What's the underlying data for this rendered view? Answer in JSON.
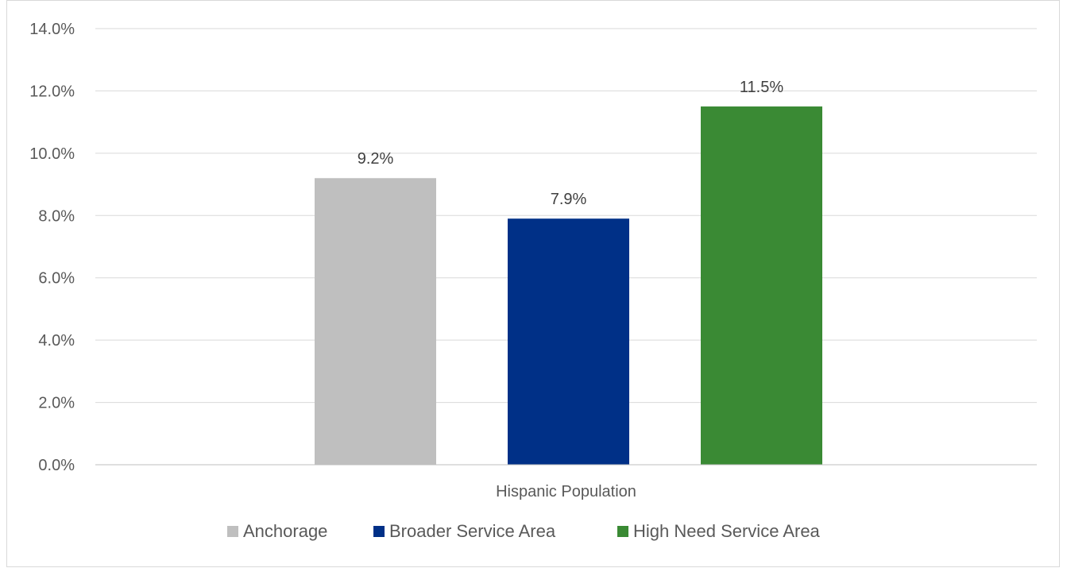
{
  "chart_data": {
    "type": "bar",
    "title": "",
    "xlabel": "",
    "ylabel": "",
    "categories": [
      "Hispanic Population"
    ],
    "series": [
      {
        "name": "Anchorage",
        "values": [
          9.2
        ],
        "color": "#bfbfbf",
        "label": "9.2%"
      },
      {
        "name": "Broader Service Area",
        "values": [
          7.9
        ],
        "color": "#003087",
        "label": "7.9%"
      },
      {
        "name": "High Need Service Area",
        "values": [
          11.5
        ],
        "color": "#3a8a34",
        "label": "11.5%"
      }
    ],
    "ylim": [
      0,
      14
    ],
    "yticks": [
      {
        "value": 0,
        "label": "0.0%"
      },
      {
        "value": 2,
        "label": "2.0%"
      },
      {
        "value": 4,
        "label": "4.0%"
      },
      {
        "value": 6,
        "label": "6.0%"
      },
      {
        "value": 8,
        "label": "8.0%"
      },
      {
        "value": 10,
        "label": "10.0%"
      },
      {
        "value": 12,
        "label": "12.0%"
      },
      {
        "value": 14,
        "label": "14.0%"
      }
    ],
    "grid": true,
    "legend": "bottom",
    "colors": {
      "gridline": "#d9d9d9",
      "axis": "#bfbfbf",
      "text": "#595959"
    }
  }
}
